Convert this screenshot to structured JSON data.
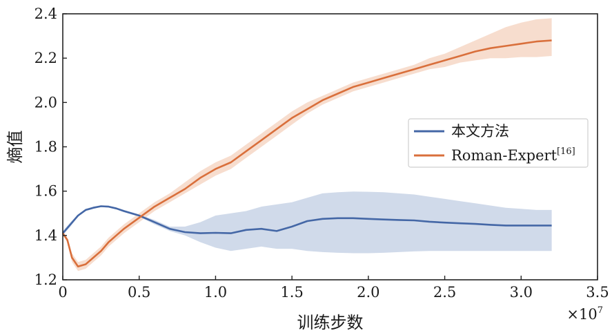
{
  "chart_data": {
    "type": "line",
    "xlabel": "训练步数",
    "ylabel": "熵值",
    "x_multiplier_label": "×10",
    "x_multiplier_exp": "7",
    "xlim": [
      0,
      3.5
    ],
    "ylim": [
      1.2,
      2.4
    ],
    "x_ticks": [
      "0",
      "0.5",
      "1.0",
      "1.5",
      "2.0",
      "2.5",
      "3.0",
      "3.5"
    ],
    "y_ticks": [
      "1.2",
      "1.4",
      "1.6",
      "1.8",
      "2.0",
      "2.2",
      "2.4"
    ],
    "x_tick_values": [
      0,
      0.5,
      1.0,
      1.5,
      2.0,
      2.5,
      3.0,
      3.5
    ],
    "y_tick_values": [
      1.2,
      1.4,
      1.6,
      1.8,
      2.0,
      2.2,
      2.4
    ],
    "legend_position": "center-right",
    "series": [
      {
        "name": "本文方法",
        "color": "#4467a6",
        "band_color": "#c8d3e6",
        "x": [
          0.0,
          0.05,
          0.1,
          0.15,
          0.2,
          0.25,
          0.3,
          0.35,
          0.4,
          0.5,
          0.6,
          0.7,
          0.8,
          0.9,
          1.0,
          1.1,
          1.2,
          1.3,
          1.4,
          1.5,
          1.6,
          1.7,
          1.8,
          1.9,
          2.0,
          2.1,
          2.2,
          2.3,
          2.4,
          2.5,
          2.6,
          2.7,
          2.8,
          2.9,
          3.0,
          3.1,
          3.2
        ],
        "y": [
          1.41,
          1.45,
          1.49,
          1.515,
          1.525,
          1.532,
          1.53,
          1.522,
          1.51,
          1.49,
          1.46,
          1.43,
          1.415,
          1.41,
          1.412,
          1.41,
          1.425,
          1.43,
          1.42,
          1.44,
          1.465,
          1.475,
          1.478,
          1.478,
          1.475,
          1.472,
          1.47,
          1.468,
          1.462,
          1.458,
          1.455,
          1.452,
          1.448,
          1.445,
          1.445,
          1.445,
          1.445
        ],
        "lower": [
          1.4,
          1.44,
          1.485,
          1.51,
          1.52,
          1.528,
          1.526,
          1.518,
          1.505,
          1.485,
          1.45,
          1.42,
          1.4,
          1.37,
          1.345,
          1.33,
          1.34,
          1.35,
          1.34,
          1.34,
          1.33,
          1.325,
          1.322,
          1.32,
          1.32,
          1.322,
          1.325,
          1.328,
          1.33,
          1.33,
          1.33,
          1.33,
          1.33,
          1.33,
          1.33,
          1.33,
          1.33
        ],
        "upper": [
          1.42,
          1.46,
          1.495,
          1.52,
          1.53,
          1.536,
          1.534,
          1.526,
          1.515,
          1.495,
          1.47,
          1.44,
          1.44,
          1.46,
          1.49,
          1.5,
          1.51,
          1.53,
          1.54,
          1.55,
          1.57,
          1.59,
          1.595,
          1.598,
          1.597,
          1.595,
          1.59,
          1.585,
          1.575,
          1.565,
          1.555,
          1.545,
          1.535,
          1.525,
          1.52,
          1.515,
          1.515
        ]
      },
      {
        "name": "Roman-Expert",
        "name_sup": "[16]",
        "color": "#d96f3b",
        "band_color": "#f6d7c5",
        "x": [
          0.0,
          0.03,
          0.06,
          0.1,
          0.15,
          0.2,
          0.25,
          0.3,
          0.35,
          0.4,
          0.5,
          0.6,
          0.7,
          0.8,
          0.9,
          1.0,
          1.1,
          1.2,
          1.3,
          1.4,
          1.5,
          1.6,
          1.7,
          1.8,
          1.9,
          2.0,
          2.1,
          2.2,
          2.3,
          2.4,
          2.5,
          2.6,
          2.7,
          2.8,
          2.9,
          3.0,
          3.1,
          3.2
        ],
        "y": [
          1.41,
          1.38,
          1.3,
          1.26,
          1.27,
          1.3,
          1.33,
          1.37,
          1.4,
          1.43,
          1.48,
          1.53,
          1.57,
          1.61,
          1.66,
          1.7,
          1.73,
          1.78,
          1.83,
          1.88,
          1.93,
          1.97,
          2.01,
          2.04,
          2.07,
          2.09,
          2.11,
          2.13,
          2.15,
          2.17,
          2.19,
          2.21,
          2.23,
          2.245,
          2.255,
          2.265,
          2.275,
          2.28
        ],
        "lower": [
          1.4,
          1.37,
          1.28,
          1.24,
          1.25,
          1.28,
          1.31,
          1.35,
          1.38,
          1.41,
          1.46,
          1.51,
          1.55,
          1.59,
          1.63,
          1.67,
          1.7,
          1.75,
          1.8,
          1.85,
          1.9,
          1.95,
          1.99,
          2.02,
          2.05,
          2.07,
          2.09,
          2.11,
          2.13,
          2.15,
          2.16,
          2.18,
          2.19,
          2.2,
          2.2,
          2.205,
          2.205,
          2.21
        ],
        "upper": [
          1.42,
          1.39,
          1.32,
          1.28,
          1.29,
          1.32,
          1.35,
          1.39,
          1.42,
          1.45,
          1.5,
          1.55,
          1.59,
          1.64,
          1.69,
          1.73,
          1.76,
          1.81,
          1.86,
          1.91,
          1.96,
          2.0,
          2.03,
          2.06,
          2.09,
          2.11,
          2.13,
          2.15,
          2.17,
          2.2,
          2.22,
          2.25,
          2.28,
          2.31,
          2.34,
          2.36,
          2.375,
          2.38
        ]
      }
    ]
  }
}
